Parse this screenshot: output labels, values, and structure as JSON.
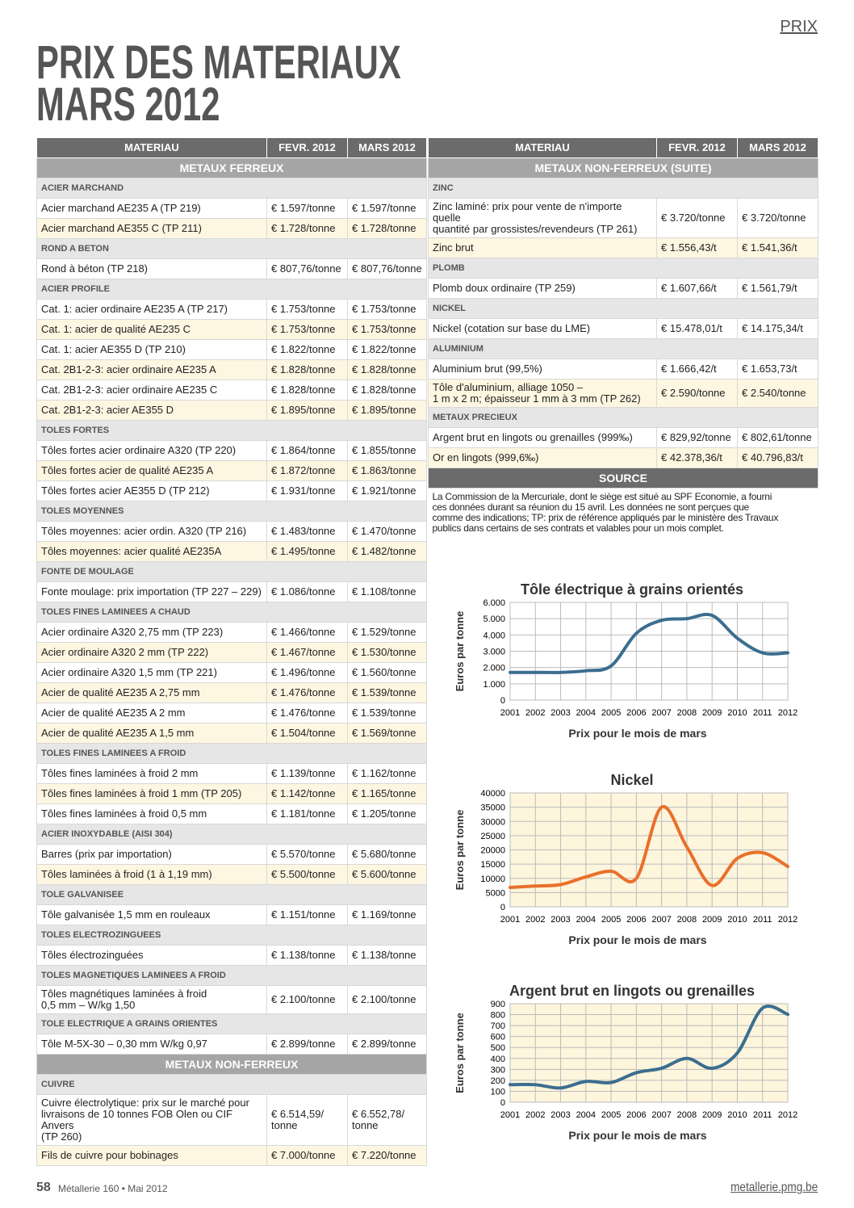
{
  "header": {
    "section_label": "PRIX",
    "title": [
      "PRIX DES MATERIAUX",
      "MARS 2012"
    ]
  },
  "left_table": {
    "columns": [
      "MATERIAU",
      "FEVR. 2012",
      "MARS 2012"
    ],
    "sections": [
      {
        "title": "METAUX FERREUX",
        "groups": [
          {
            "title": "ACIER MARCHAND",
            "rows": [
              [
                "Acier marchand AE235 A (TP 219)",
                "€ 1.597/tonne",
                "€ 1.597/tonne"
              ],
              [
                "Acier marchand AE355 C (TP 211)",
                "€ 1.728/tonne",
                "€ 1.728/tonne"
              ]
            ]
          },
          {
            "title": "ROND A BETON",
            "rows": [
              [
                "Rond à béton (TP 218)",
                "€ 807,76/tonne",
                "€ 807,76/tonne"
              ]
            ]
          },
          {
            "title": "ACIER PROFILE",
            "rows": [
              [
                "Cat. 1: acier ordinaire AE235 A (TP 217)",
                "€ 1.753/tonne",
                "€ 1.753/tonne"
              ],
              [
                "Cat. 1: acier de qualité AE235 C",
                "€ 1.753/tonne",
                "€ 1.753/tonne"
              ],
              [
                "Cat. 1: acier AE355 D (TP 210)",
                "€ 1.822/tonne",
                "€ 1.822/tonne"
              ],
              [
                "Cat. 2B1-2-3: acier ordinaire AE235 A",
                "€ 1.828/tonne",
                "€ 1.828/tonne"
              ],
              [
                "Cat. 2B1-2-3: acier ordinaire AE235 C",
                "€ 1.828/tonne",
                "€ 1.828/tonne"
              ],
              [
                "Cat. 2B1-2-3: acier AE355 D",
                "€ 1.895/tonne",
                "€ 1.895/tonne"
              ]
            ]
          },
          {
            "title": "TOLES FORTES",
            "rows": [
              [
                "Tôles fortes acier ordinaire A320 (TP 220)",
                "€ 1.864/tonne",
                "€ 1.855/tonne"
              ],
              [
                "Tôles fortes acier de qualité AE235 A",
                "€ 1.872/tonne",
                "€ 1.863/tonne"
              ],
              [
                "Tôles fortes acier AE355 D (TP 212)",
                "€ 1.931/tonne",
                "€ 1.921/tonne"
              ]
            ]
          },
          {
            "title": "TOLES MOYENNES",
            "rows": [
              [
                "Tôles moyennes: acier ordin. A320 (TP 216)",
                "€ 1.483/tonne",
                "€ 1.470/tonne"
              ],
              [
                "Tôles moyennes: acier qualité AE235A",
                "€ 1.495/tonne",
                "€ 1.482/tonne"
              ]
            ]
          },
          {
            "title": "FONTE DE MOULAGE",
            "rows": [
              [
                "Fonte moulage: prix importation (TP 227 – 229)",
                "€ 1.086/tonne",
                "€ 1.108/tonne"
              ]
            ]
          },
          {
            "title": "TOLES FINES LAMINEES A CHAUD",
            "rows": [
              [
                "Acier ordinaire A320 2,75 mm (TP 223)",
                "€ 1.466/tonne",
                "€ 1.529/tonne"
              ],
              [
                "Acier ordinaire A320 2 mm (TP 222)",
                "€ 1.467/tonne",
                "€ 1.530/tonne"
              ],
              [
                "Acier ordinaire A320 1,5 mm (TP 221)",
                "€ 1.496/tonne",
                "€ 1.560/tonne"
              ],
              [
                "Acier de qualité AE235 A 2,75 mm",
                "€ 1.476/tonne",
                "€ 1.539/tonne"
              ],
              [
                "Acier de qualité AE235 A 2 mm",
                "€ 1.476/tonne",
                "€ 1.539/tonne"
              ],
              [
                "Acier de qualité AE235 A 1,5 mm",
                "€ 1.504/tonne",
                "€ 1.569/tonne"
              ]
            ]
          },
          {
            "title": "TOLES FINES LAMINEES A FROID",
            "rows": [
              [
                "Tôles fines laminées à froid 2 mm",
                "€ 1.139/tonne",
                "€ 1.162/tonne"
              ],
              [
                "Tôles fines laminées à froid 1 mm (TP 205)",
                "€ 1.142/tonne",
                "€ 1.165/tonne"
              ],
              [
                "Tôles fines laminées à froid 0,5 mm",
                "€ 1.181/tonne",
                "€ 1.205/tonne"
              ]
            ]
          },
          {
            "title": "ACIER INOXYDABLE (AISI 304)",
            "rows": [
              [
                "Barres (prix par importation)",
                "€ 5.570/tonne",
                "€ 5.680/tonne"
              ],
              [
                "Tôles laminées à froid (1 à 1,19 mm)",
                "€ 5.500/tonne",
                "€ 5.600/tonne"
              ]
            ]
          },
          {
            "title": "TOLE GALVANISEE",
            "rows": [
              [
                "Tôle galvanisée 1,5 mm en rouleaux",
                "€ 1.151/tonne",
                "€ 1.169/tonne"
              ]
            ]
          },
          {
            "title": "TOLES ELECTROZINGUEES",
            "rows": [
              [
                "Tôles électrozinguées",
                "€ 1.138/tonne",
                "€ 1.138/tonne"
              ]
            ]
          },
          {
            "title": "TOLES MAGNETIQUES LAMINEES A FROID",
            "rows": [
              [
                "Tôles magnétiques laminées à froid\n0,5 mm – W/kg 1,50",
                "€ 2.100/tonne",
                "€ 2.100/tonne"
              ]
            ]
          },
          {
            "title": "TOLE ELECTRIQUE A GRAINS ORIENTES",
            "rows": [
              [
                "Tôle M-5X-30 – 0,30 mm W/kg 0,97",
                "€ 2.899/tonne",
                "€ 2.899/tonne"
              ]
            ]
          }
        ]
      },
      {
        "title": "METAUX NON-FERREUX",
        "groups": [
          {
            "title": "CUIVRE",
            "rows": [
              [
                "Cuivre électrolytique: prix sur le marché pour\nlivraisons de 10 tonnes FOB Olen ou CIF Anvers\n(TP 260)",
                "€ 6.514,59/\ntonne",
                "€ 6.552,78/\ntonne"
              ],
              [
                "Fils de cuivre pour bobinages",
                "€ 7.000/tonne",
                "€ 7.220/tonne"
              ]
            ]
          }
        ]
      }
    ]
  },
  "right_table": {
    "columns": [
      "MATERIAU",
      "FEVR. 2012",
      "MARS 2012"
    ],
    "sections": [
      {
        "title": "METAUX NON-FERREUX (SUITE)",
        "groups": [
          {
            "title": "ZINC",
            "rows": [
              [
                "Zinc laminé: prix pour vente de n'importe quelle\nquantité par grossistes/revendeurs (TP 261)",
                "€ 3.720/tonne",
                "€ 3.720/tonne"
              ],
              [
                "Zinc brut",
                "€ 1.556,43/t",
                "€ 1.541,36/t"
              ]
            ]
          },
          {
            "title": "PLOMB",
            "rows": [
              [
                "Plomb doux ordinaire (TP 259)",
                "€ 1.607,66/t",
                "€ 1.561,79/t"
              ]
            ]
          },
          {
            "title": "NICKEL",
            "rows": [
              [
                "Nickel (cotation sur base du LME)",
                "€ 15.478,01/t",
                "€ 14.175,34/t"
              ]
            ]
          },
          {
            "title": "ALUMINIUM",
            "rows": [
              [
                "Aluminium brut (99,5%)",
                "€ 1.666,42/t",
                "€ 1.653,73/t"
              ],
              [
                "Tôle d'aluminium, alliage 1050 –\n1 m x 2 m; épaisseur 1 mm à 3 mm (TP 262)",
                "€ 2.590/tonne",
                "€ 2.540/tonne"
              ]
            ]
          },
          {
            "title": "METAUX PRECIEUX",
            "rows": [
              [
                "Argent brut en lingots ou grenailles (999‰)",
                "€ 829,92/tonne",
                "€ 802,61/tonne"
              ],
              [
                "Or en lingots (999,6‰)",
                "€ 42.378,36/t",
                "€ 40.796,83/t"
              ]
            ]
          }
        ]
      }
    ]
  },
  "source": {
    "title": "SOURCE",
    "text": "La Commission de la Mercuriale, dont le siège est situé au SPF Economie, a fourni\nces données durant sa réunion du 15 avril. Les données ne sont perçues que\ncomme des indications; TP: prix de référence appliqués par le ministère des Travaux\npublics dans certains de ses contrats et valables pour un mois complet."
  },
  "chart_data": [
    {
      "type": "line",
      "title": "Tôle électrique à grains orientés",
      "x_label": "Prix pour le mois de mars",
      "y_label": "Euros par tonne",
      "x": [
        2001,
        2002,
        2003,
        2004,
        2005,
        2006,
        2007,
        2008,
        2009,
        2010,
        2011,
        2012
      ],
      "values": [
        1700,
        1700,
        1700,
        1800,
        2100,
        4100,
        4900,
        5000,
        5200,
        3800,
        2900,
        2899
      ],
      "color": "#3b6e8f",
      "background": "#ffffff",
      "grid": true,
      "xlim": [
        2001,
        2012
      ],
      "xticks": [
        2001,
        2002,
        2003,
        2004,
        2005,
        2006,
        2007,
        2008,
        2009,
        2010,
        2011,
        2012
      ],
      "ylim": [
        0,
        6000
      ],
      "yticks": [
        0,
        {
          "value": 1000,
          "label": "1.000"
        },
        {
          "value": 2000,
          "label": "2.000"
        },
        {
          "value": 3000,
          "label": "3.000"
        },
        {
          "value": 4000,
          "label": "4.000"
        },
        {
          "value": 5000,
          "label": "5.000"
        },
        {
          "value": 6000,
          "label": "6.000"
        }
      ]
    },
    {
      "type": "line",
      "title": "Nickel",
      "x_label": "Prix pour le mois de mars",
      "y_label": "Euros par tonne",
      "x": [
        2001,
        2002,
        2003,
        2004,
        2005,
        2006,
        2007,
        2008,
        2009,
        2010,
        2011,
        2012
      ],
      "values": [
        6800,
        7300,
        7800,
        10500,
        12500,
        10000,
        35000,
        21000,
        7500,
        17000,
        19000,
        14175
      ],
      "color": "#e8702a",
      "background": "#fdf5dc",
      "grid": true,
      "xlim": [
        2001,
        2012
      ],
      "xticks": [
        2001,
        2002,
        2003,
        2004,
        2005,
        2006,
        2007,
        2008,
        2009,
        2010,
        2011,
        2012
      ],
      "ylim": [
        0,
        40000
      ],
      "yticks": [
        0,
        5000,
        10000,
        15000,
        20000,
        25000,
        30000,
        35000,
        40000
      ]
    },
    {
      "type": "line",
      "title": "Argent brut en lingots ou grenailles",
      "x_label": "Prix pour le mois de mars",
      "y_label": "Euros par tonne",
      "x": [
        2001,
        2002,
        2003,
        2004,
        2005,
        2006,
        2007,
        2008,
        2009,
        2010,
        2011,
        2012
      ],
      "values": [
        160,
        160,
        130,
        190,
        180,
        270,
        310,
        400,
        310,
        450,
        860,
        803
      ],
      "color": "#3b6e8f",
      "background": "#fdf5dc",
      "grid": true,
      "xlim": [
        2001,
        2012
      ],
      "xticks": [
        2001,
        2002,
        2003,
        2004,
        2005,
        2006,
        2007,
        2008,
        2009,
        2010,
        2011,
        2012
      ],
      "ylim": [
        0,
        900
      ],
      "yticks": [
        0,
        100,
        200,
        300,
        400,
        500,
        600,
        700,
        800,
        900
      ]
    }
  ],
  "footer": {
    "page": "58",
    "issue": "Métallerie 160 • Mai 2012",
    "website": "metallerie.pmg.be"
  }
}
